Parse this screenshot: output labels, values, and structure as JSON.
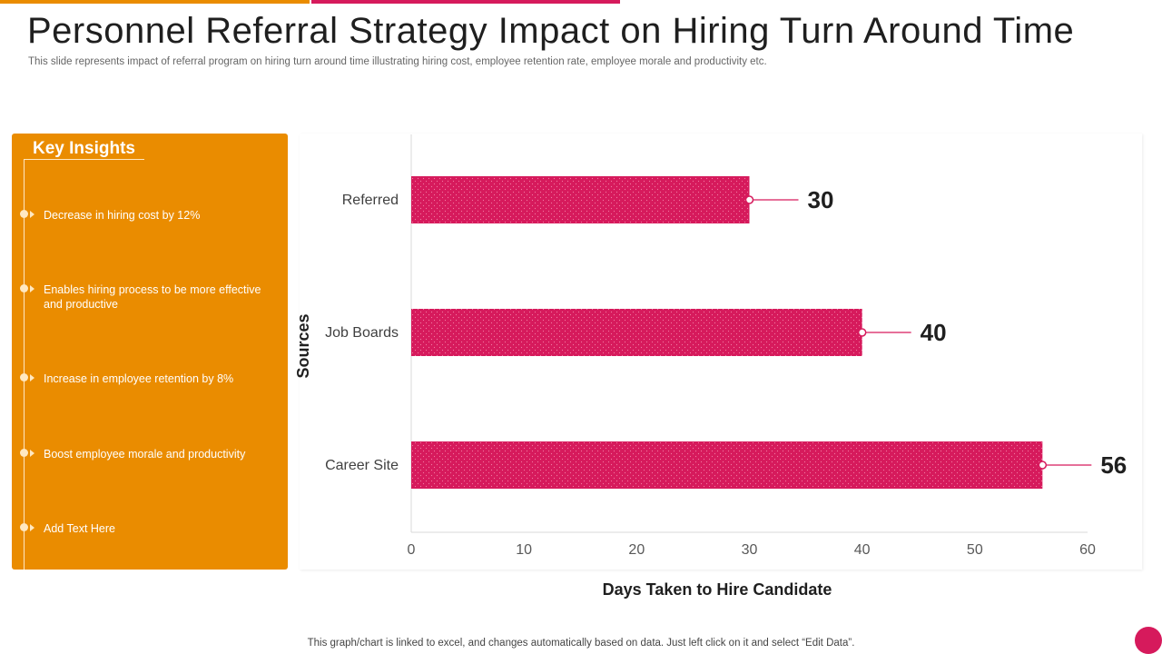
{
  "slide": {
    "title": "Personnel Referral Strategy Impact on Hiring Turn Around Time",
    "subtitle": "This slide represents impact of referral program on hiring turn around time illustrating hiring cost, employee retention rate, employee morale and productivity etc.",
    "footer": "This graph/chart is linked to excel,  and changes automatically based on data. Just left click on it and select “Edit Data”."
  },
  "insights": {
    "title": "Key Insights",
    "items": [
      "Decrease in hiring cost by 12%",
      "Enables hiring process to be more effective  and productive",
      "Increase in employee  retention by 8%",
      "Boost employee  morale and productivity",
      "Add Text Here"
    ]
  },
  "colors": {
    "orange": "#ea8c00",
    "magenta": "#d61a5c"
  },
  "chart_data": {
    "type": "bar",
    "orientation": "horizontal",
    "categories": [
      "Referred",
      "Job Boards",
      "Career Site"
    ],
    "values": [
      30,
      40,
      56
    ],
    "data_labels": [
      "30",
      "40",
      "56"
    ],
    "xlabel": "Days Taken to Hire Candidate",
    "ylabel": "Sources",
    "xlim": [
      0,
      60
    ],
    "xticks": [
      0,
      10,
      20,
      30,
      40,
      50,
      60
    ],
    "grid": false,
    "legend": "none",
    "bar_color": "#d61a5c"
  }
}
